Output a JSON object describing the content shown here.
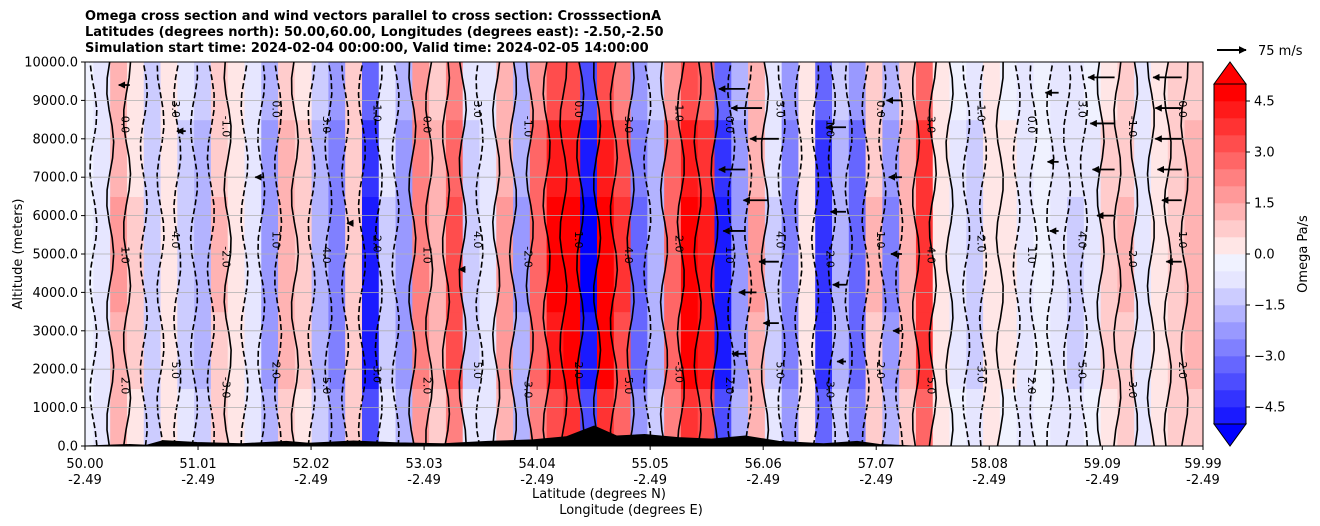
{
  "chart_data": {
    "type": "heatmap",
    "title_lines": [
      "Omega cross section and wind vectors parallel to cross section: CrosssectionA",
      "Latitudes (degrees north): 50.00,60.00, Longitudes (degrees east): -2.50,-2.50",
      "Simulation start time: 2024-02-04 00:00:00, Valid time: 2024-02-05 14:00:00"
    ],
    "ylabel": "Altitude (meters)",
    "xlabel_lat": "Latitude (degrees N)",
    "xlabel_lon": "Longitude (degrees E)",
    "xlim": [
      50.0,
      59.99
    ],
    "ylim": [
      0,
      10000
    ],
    "y_ticks": [
      {
        "value": 0,
        "label": "0.0"
      },
      {
        "value": 1000,
        "label": "1000.0"
      },
      {
        "value": 2000,
        "label": "2000.0"
      },
      {
        "value": 3000,
        "label": "3000.0"
      },
      {
        "value": 4000,
        "label": "4000.0"
      },
      {
        "value": 5000,
        "label": "5000.0"
      },
      {
        "value": 6000,
        "label": "6000.0"
      },
      {
        "value": 7000,
        "label": "7000.0"
      },
      {
        "value": 8000,
        "label": "8000.0"
      },
      {
        "value": 9000,
        "label": "9000.0"
      },
      {
        "value": 10000,
        "label": "10000.0"
      }
    ],
    "x_ticks": [
      {
        "lat": 50.0,
        "lat_label": "50.00",
        "lon_label": "-2.49"
      },
      {
        "lat": 51.01,
        "lat_label": "51.01",
        "lon_label": "-2.49"
      },
      {
        "lat": 52.02,
        "lat_label": "52.02",
        "lon_label": "-2.49"
      },
      {
        "lat": 53.03,
        "lat_label": "53.03",
        "lon_label": "-2.49"
      },
      {
        "lat": 54.04,
        "lat_label": "54.04",
        "lon_label": "-2.49"
      },
      {
        "lat": 55.05,
        "lat_label": "55.05",
        "lon_label": "-2.49"
      },
      {
        "lat": 56.06,
        "lat_label": "56.06",
        "lon_label": "-2.49"
      },
      {
        "lat": 57.07,
        "lat_label": "57.07",
        "lon_label": "-2.49"
      },
      {
        "lat": 58.08,
        "lat_label": "58.08",
        "lon_label": "-2.49"
      },
      {
        "lat": 59.09,
        "lat_label": "59.09",
        "lon_label": "-2.49"
      },
      {
        "lat": 59.99,
        "lat_label": "59.99",
        "lon_label": "-2.49"
      }
    ],
    "colorbar": {
      "label": "Omega Pa/s",
      "range": [
        -5.0,
        5.0
      ],
      "ticks": [
        {
          "value": 4.5,
          "label": "4.5"
        },
        {
          "value": 3.0,
          "label": "3.0"
        },
        {
          "value": 1.5,
          "label": "1.5"
        },
        {
          "value": 0.0,
          "label": "0.0"
        },
        {
          "value": -1.5,
          "label": "−1.5"
        },
        {
          "value": -3.0,
          "label": "−3.0"
        },
        {
          "value": -4.5,
          "label": "−4.5"
        }
      ],
      "neg_color": "#0000ff",
      "pos_color": "#ff0000",
      "mid_color": "#ffffff"
    },
    "quiver_key_label": "75 m/s",
    "contour_labels": [
      "0.0",
      "1.0",
      "2.0",
      "3.0",
      "4.0",
      "5.0",
      "-1.0",
      "-2.0",
      "-3.0"
    ],
    "omega_columns": [
      {
        "lat": 50.0,
        "omega": 0.2
      },
      {
        "lat": 50.15,
        "omega": -0.6
      },
      {
        "lat": 50.3,
        "omega": 1.8
      },
      {
        "lat": 50.45,
        "omega": 0.8
      },
      {
        "lat": 50.6,
        "omega": -1.2
      },
      {
        "lat": 50.75,
        "omega": 0.6
      },
      {
        "lat": 50.9,
        "omega": -0.9
      },
      {
        "lat": 51.05,
        "omega": -1.6
      },
      {
        "lat": 51.2,
        "omega": 1.3
      },
      {
        "lat": 51.35,
        "omega": 0.4
      },
      {
        "lat": 51.5,
        "omega": -0.5
      },
      {
        "lat": 51.65,
        "omega": -2.2
      },
      {
        "lat": 51.8,
        "omega": 1.4
      },
      {
        "lat": 51.95,
        "omega": 0.9
      },
      {
        "lat": 52.1,
        "omega": -1.4
      },
      {
        "lat": 52.25,
        "omega": -2.6
      },
      {
        "lat": 52.4,
        "omega": 1.1
      },
      {
        "lat": 52.55,
        "omega": -4.5
      },
      {
        "lat": 52.7,
        "omega": -0.8
      },
      {
        "lat": 52.85,
        "omega": -2.1
      },
      {
        "lat": 53.0,
        "omega": 2.6
      },
      {
        "lat": 53.15,
        "omega": 1.4
      },
      {
        "lat": 53.3,
        "omega": 3.6
      },
      {
        "lat": 53.45,
        "omega": -1.0
      },
      {
        "lat": 53.6,
        "omega": -0.4
      },
      {
        "lat": 53.75,
        "omega": 1.9
      },
      {
        "lat": 53.9,
        "omega": -1.8
      },
      {
        "lat": 54.05,
        "omega": 3.2
      },
      {
        "lat": 54.2,
        "omega": 4.9
      },
      {
        "lat": 54.35,
        "omega": 5.0
      },
      {
        "lat": 54.5,
        "omega": -5.0
      },
      {
        "lat": 54.65,
        "omega": 5.0
      },
      {
        "lat": 54.8,
        "omega": 3.8
      },
      {
        "lat": 54.95,
        "omega": -3.0
      },
      {
        "lat": 55.1,
        "omega": -1.6
      },
      {
        "lat": 55.25,
        "omega": 3.1
      },
      {
        "lat": 55.4,
        "omega": 5.0
      },
      {
        "lat": 55.55,
        "omega": 4.6
      },
      {
        "lat": 55.7,
        "omega": -4.6
      },
      {
        "lat": 55.85,
        "omega": -2.0
      },
      {
        "lat": 56.0,
        "omega": 1.8
      },
      {
        "lat": 56.15,
        "omega": -0.8
      },
      {
        "lat": 56.3,
        "omega": -2.6
      },
      {
        "lat": 56.45,
        "omega": 0.7
      },
      {
        "lat": 56.6,
        "omega": -4.2
      },
      {
        "lat": 56.75,
        "omega": -1.6
      },
      {
        "lat": 56.9,
        "omega": -3.2
      },
      {
        "lat": 57.05,
        "omega": 1.3
      },
      {
        "lat": 57.2,
        "omega": -2.3
      },
      {
        "lat": 57.35,
        "omega": 1.6
      },
      {
        "lat": 57.5,
        "omega": 4.2
      },
      {
        "lat": 57.65,
        "omega": 0.6
      },
      {
        "lat": 57.8,
        "omega": -0.3
      },
      {
        "lat": 57.95,
        "omega": -0.9
      },
      {
        "lat": 58.1,
        "omega": 0.5
      },
      {
        "lat": 58.25,
        "omega": 0.3
      },
      {
        "lat": 58.4,
        "omega": -0.4
      },
      {
        "lat": 58.55,
        "omega": 0.2
      },
      {
        "lat": 58.7,
        "omega": -0.5
      },
      {
        "lat": 58.85,
        "omega": -0.8
      },
      {
        "lat": 59.0,
        "omega": -0.3
      },
      {
        "lat": 59.15,
        "omega": 0.9
      },
      {
        "lat": 59.3,
        "omega": 1.3
      },
      {
        "lat": 59.45,
        "omega": -0.6
      },
      {
        "lat": 59.6,
        "omega": 0.7
      },
      {
        "lat": 59.75,
        "omega": 1.1
      },
      {
        "lat": 59.9,
        "omega": 1.6
      }
    ],
    "wind_vectors": [
      {
        "lat": 55.9,
        "alt": 9300,
        "u": -12
      },
      {
        "lat": 56.05,
        "alt": 8800,
        "u": -14
      },
      {
        "lat": 56.2,
        "alt": 8000,
        "u": -13
      },
      {
        "lat": 55.9,
        "alt": 7200,
        "u": -12
      },
      {
        "lat": 56.1,
        "alt": 6400,
        "u": -11
      },
      {
        "lat": 55.9,
        "alt": 5600,
        "u": -10
      },
      {
        "lat": 56.2,
        "alt": 4800,
        "u": -9
      },
      {
        "lat": 56.0,
        "alt": 4000,
        "u": -8
      },
      {
        "lat": 56.2,
        "alt": 3200,
        "u": -7
      },
      {
        "lat": 55.9,
        "alt": 2400,
        "u": -6
      },
      {
        "lat": 56.8,
        "alt": 8300,
        "u": -9
      },
      {
        "lat": 56.8,
        "alt": 6100,
        "u": -7
      },
      {
        "lat": 56.8,
        "alt": 4200,
        "u": -6
      },
      {
        "lat": 56.8,
        "alt": 2200,
        "u": -4
      },
      {
        "lat": 57.3,
        "alt": 9000,
        "u": -7
      },
      {
        "lat": 57.3,
        "alt": 7000,
        "u": -6
      },
      {
        "lat": 57.3,
        "alt": 5000,
        "u": -5
      },
      {
        "lat": 57.3,
        "alt": 3000,
        "u": -4
      },
      {
        "lat": 58.7,
        "alt": 9200,
        "u": -6
      },
      {
        "lat": 58.7,
        "alt": 7400,
        "u": -5
      },
      {
        "lat": 58.7,
        "alt": 5600,
        "u": -4
      },
      {
        "lat": 59.2,
        "alt": 9600,
        "u": -12
      },
      {
        "lat": 59.2,
        "alt": 8400,
        "u": -11
      },
      {
        "lat": 59.2,
        "alt": 7200,
        "u": -10
      },
      {
        "lat": 59.2,
        "alt": 6000,
        "u": -8
      },
      {
        "lat": 59.8,
        "alt": 9600,
        "u": -13
      },
      {
        "lat": 59.8,
        "alt": 8800,
        "u": -12
      },
      {
        "lat": 59.8,
        "alt": 8000,
        "u": -12
      },
      {
        "lat": 59.8,
        "alt": 7200,
        "u": -11
      },
      {
        "lat": 59.8,
        "alt": 6400,
        "u": -9
      },
      {
        "lat": 59.8,
        "alt": 4800,
        "u": -7
      },
      {
        "lat": 50.4,
        "alt": 9400,
        "u": -5
      },
      {
        "lat": 50.9,
        "alt": 8200,
        "u": -4
      },
      {
        "lat": 51.6,
        "alt": 7000,
        "u": -4
      },
      {
        "lat": 52.4,
        "alt": 5800,
        "u": -3
      },
      {
        "lat": 53.4,
        "alt": 4600,
        "u": -3
      }
    ],
    "terrain": [
      {
        "lat": 50.0,
        "alt": 0
      },
      {
        "lat": 50.4,
        "alt": 40
      },
      {
        "lat": 50.55,
        "alt": 20
      },
      {
        "lat": 50.7,
        "alt": 140
      },
      {
        "lat": 51.0,
        "alt": 90
      },
      {
        "lat": 51.4,
        "alt": 60
      },
      {
        "lat": 51.8,
        "alt": 120
      },
      {
        "lat": 52.0,
        "alt": 70
      },
      {
        "lat": 52.4,
        "alt": 130
      },
      {
        "lat": 52.8,
        "alt": 80
      },
      {
        "lat": 53.2,
        "alt": 60
      },
      {
        "lat": 53.6,
        "alt": 120
      },
      {
        "lat": 54.0,
        "alt": 160
      },
      {
        "lat": 54.3,
        "alt": 240
      },
      {
        "lat": 54.55,
        "alt": 520
      },
      {
        "lat": 54.75,
        "alt": 260
      },
      {
        "lat": 55.0,
        "alt": 300
      },
      {
        "lat": 55.3,
        "alt": 220
      },
      {
        "lat": 55.6,
        "alt": 180
      },
      {
        "lat": 55.9,
        "alt": 260
      },
      {
        "lat": 56.2,
        "alt": 120
      },
      {
        "lat": 56.6,
        "alt": 60
      },
      {
        "lat": 56.9,
        "alt": 120
      },
      {
        "lat": 57.1,
        "alt": 40
      },
      {
        "lat": 57.4,
        "alt": 0
      },
      {
        "lat": 59.99,
        "alt": 0
      }
    ]
  }
}
